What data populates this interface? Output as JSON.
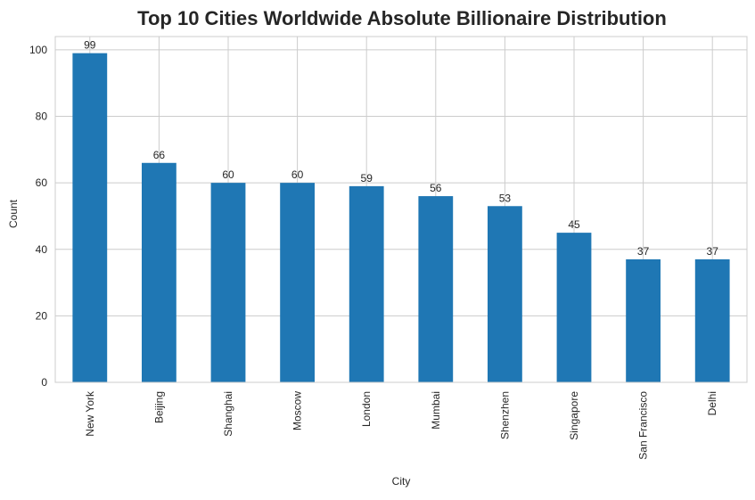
{
  "chart_data": {
    "type": "bar",
    "title": "Top 10 Cities Worldwide Absolute Billionaire Distribution",
    "xlabel": "City",
    "ylabel": "Count",
    "categories": [
      "New York",
      "Beijing",
      "Shanghai",
      "Moscow",
      "London",
      "Mumbai",
      "Shenzhen",
      "Singapore",
      "San Francisco",
      "Delhi"
    ],
    "values": [
      99,
      66,
      60,
      60,
      59,
      56,
      53,
      45,
      37,
      37
    ],
    "ylim": [
      0,
      104
    ],
    "yticks": [
      0,
      20,
      40,
      60,
      80,
      100
    ],
    "grid": true,
    "legend": "none",
    "bar_color": "#1f77b4",
    "grid_color": "#cccccc",
    "text_color": "#262626"
  }
}
